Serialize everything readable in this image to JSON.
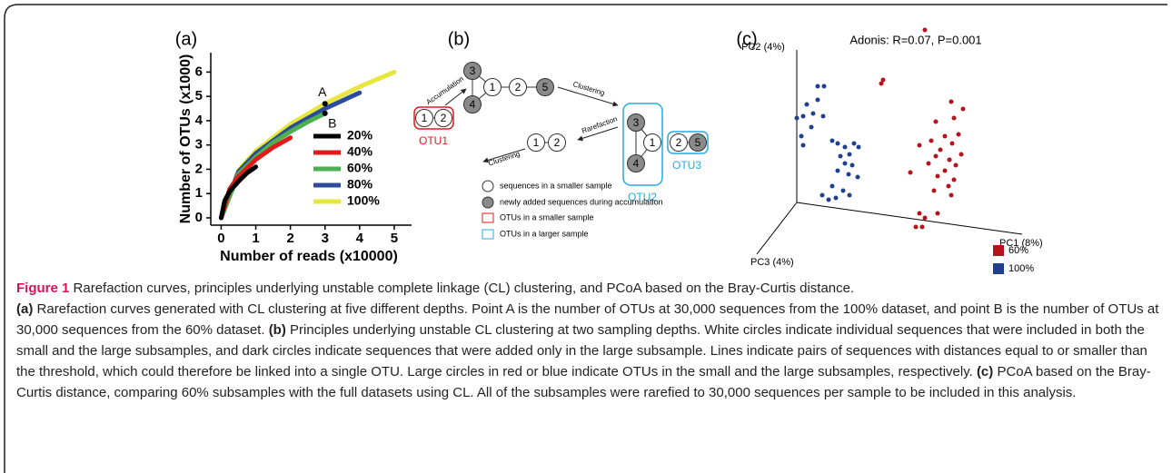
{
  "chart_data": [
    {
      "type": "line",
      "label": "(a)",
      "x_label": "Number of reads (x10000)",
      "y_label": "Number of OTUs (x1000)",
      "xlim": [
        -0.3,
        5.5
      ],
      "ylim": [
        -0.3,
        6.8
      ],
      "xticks": [
        0,
        1,
        2,
        3,
        4,
        5
      ],
      "yticks": [
        0,
        1,
        2,
        3,
        4,
        5,
        6
      ],
      "series": [
        {
          "name": "20%",
          "color": "#000000",
          "x": [
            0,
            0.1,
            0.25,
            0.5,
            0.75,
            1
          ],
          "values": [
            0,
            0.7,
            1.1,
            1.5,
            1.85,
            2.1
          ]
        },
        {
          "name": "40%",
          "color": "#e31a1c",
          "x": [
            0,
            0.25,
            0.5,
            1,
            1.5,
            2
          ],
          "values": [
            0,
            1.2,
            1.7,
            2.4,
            2.9,
            3.3
          ]
        },
        {
          "name": "60%",
          "color": "#4caf50",
          "x": [
            0,
            0.5,
            1,
            1.5,
            2,
            2.5,
            3
          ],
          "values": [
            0,
            1.8,
            2.5,
            3.1,
            3.55,
            3.95,
            4.3
          ]
        },
        {
          "name": "80%",
          "color": "#2b4c9b",
          "x": [
            0,
            0.5,
            1,
            2,
            3,
            4
          ],
          "values": [
            0,
            1.9,
            2.65,
            3.7,
            4.5,
            5.15
          ]
        },
        {
          "name": "100%",
          "color": "#e6e63c",
          "x": [
            0,
            0.5,
            1,
            2,
            3,
            4,
            5
          ],
          "values": [
            0,
            1.95,
            2.75,
            3.85,
            4.7,
            5.4,
            6.0
          ]
        }
      ],
      "annotations": [
        {
          "text": "A",
          "x": 3,
          "y": 4.7
        },
        {
          "text": "B",
          "x": 3,
          "y": 4.3
        }
      ]
    },
    {
      "type": "scatter",
      "label": "(c)",
      "title": "Adonis: R=0.07, P=0.001",
      "axis_labels": [
        "PC2 (4%)",
        "PC1 (8%)",
        "PC3 (4%)"
      ],
      "xlim": [
        0,
        240
      ],
      "ylim": [
        0,
        220
      ],
      "series": [
        {
          "name": "60%",
          "color": "#b5121b",
          "x": [
            158,
            112,
            110,
            187,
            190,
            170,
            195,
            180,
            165,
            188,
            152,
            175,
            198,
            170,
            185,
            162,
            192,
            180,
            172,
            190,
            184,
            142,
            187,
            152,
            158,
            148,
            168,
            200,
            155,
            172
          ],
          "values": [
            227,
            172,
            168,
            148,
            130,
            126,
            112,
            110,
            105,
            102,
            100,
            95,
            90,
            88,
            84,
            80,
            78,
            72,
            66,
            62,
            55,
            70,
            45,
            25,
            20,
            10,
            50,
            140,
            10,
            25
          ]
        },
        {
          "name": "100%",
          "color": "#1f3f8f",
          "x": [
            47,
            40,
            28,
            35,
            24,
            46,
            17,
            33,
            22,
            24,
            56,
            62,
            70,
            80,
            85,
            75,
            65,
            70,
            78,
            62,
            74,
            84,
            56,
            68,
            75,
            60,
            52,
            45,
            40
          ],
          "values": [
            165,
            150,
            145,
            135,
            132,
            132,
            130,
            120,
            110,
            100,
            105,
            102,
            98,
            102,
            98,
            90,
            88,
            80,
            78,
            72,
            68,
            65,
            55,
            50,
            45,
            42,
            40,
            45,
            165
          ]
        }
      ]
    }
  ],
  "diagram": {
    "label": "(b)",
    "nodes": [
      "1",
      "2",
      "3",
      "4",
      "1",
      "2",
      "5",
      "3",
      "4",
      "1",
      "2",
      "5",
      "1",
      "2"
    ],
    "arrows": [
      "Accumulation",
      "Clustering",
      "Rarefaction",
      "Clustering"
    ],
    "groups": [
      "OTU1",
      "OTU2",
      "OTU3"
    ],
    "legend": [
      "sequences in a smaller sample",
      "newly added sequences during accumulation",
      "OTUs in a smaller sample",
      "OTUs in a larger sample"
    ]
  },
  "caption": {
    "figure": "Figure 1",
    "title": "Rarefaction curves, principles underlying unstable complete linkage (CL) clustering, and PCoA based on the Bray-Curtis distance.",
    "parts": [
      {
        "label": "(a)",
        "text": "Rarefaction curves generated with CL clustering at five different depths. Point A is the number of OTUs at 30,000 sequences from the 100% dataset, and point B is the number of OTUs at 30,000 sequences from the 60% dataset."
      },
      {
        "label": "(b)",
        "text": "Principles underlying unstable CL clustering at two sampling depths. White circles indicate individual sequences that were included in both the small and the large subsamples, and dark circles indicate sequences that were added only in the large subsample. Lines indicate pairs of sequences with distances equal to or smaller than the threshold, which could therefore be linked into a single OTU. Large circles in red or blue indicate OTUs in the small and the large subsamples, respectively."
      },
      {
        "label": "(c)",
        "text": "PCoA based on the Bray-Curtis distance, comparing 60% subsamples with the full datasets using CL. All of the subsamples were rarefied to 30,000 sequences per sample to be included in this analysis."
      }
    ]
  }
}
